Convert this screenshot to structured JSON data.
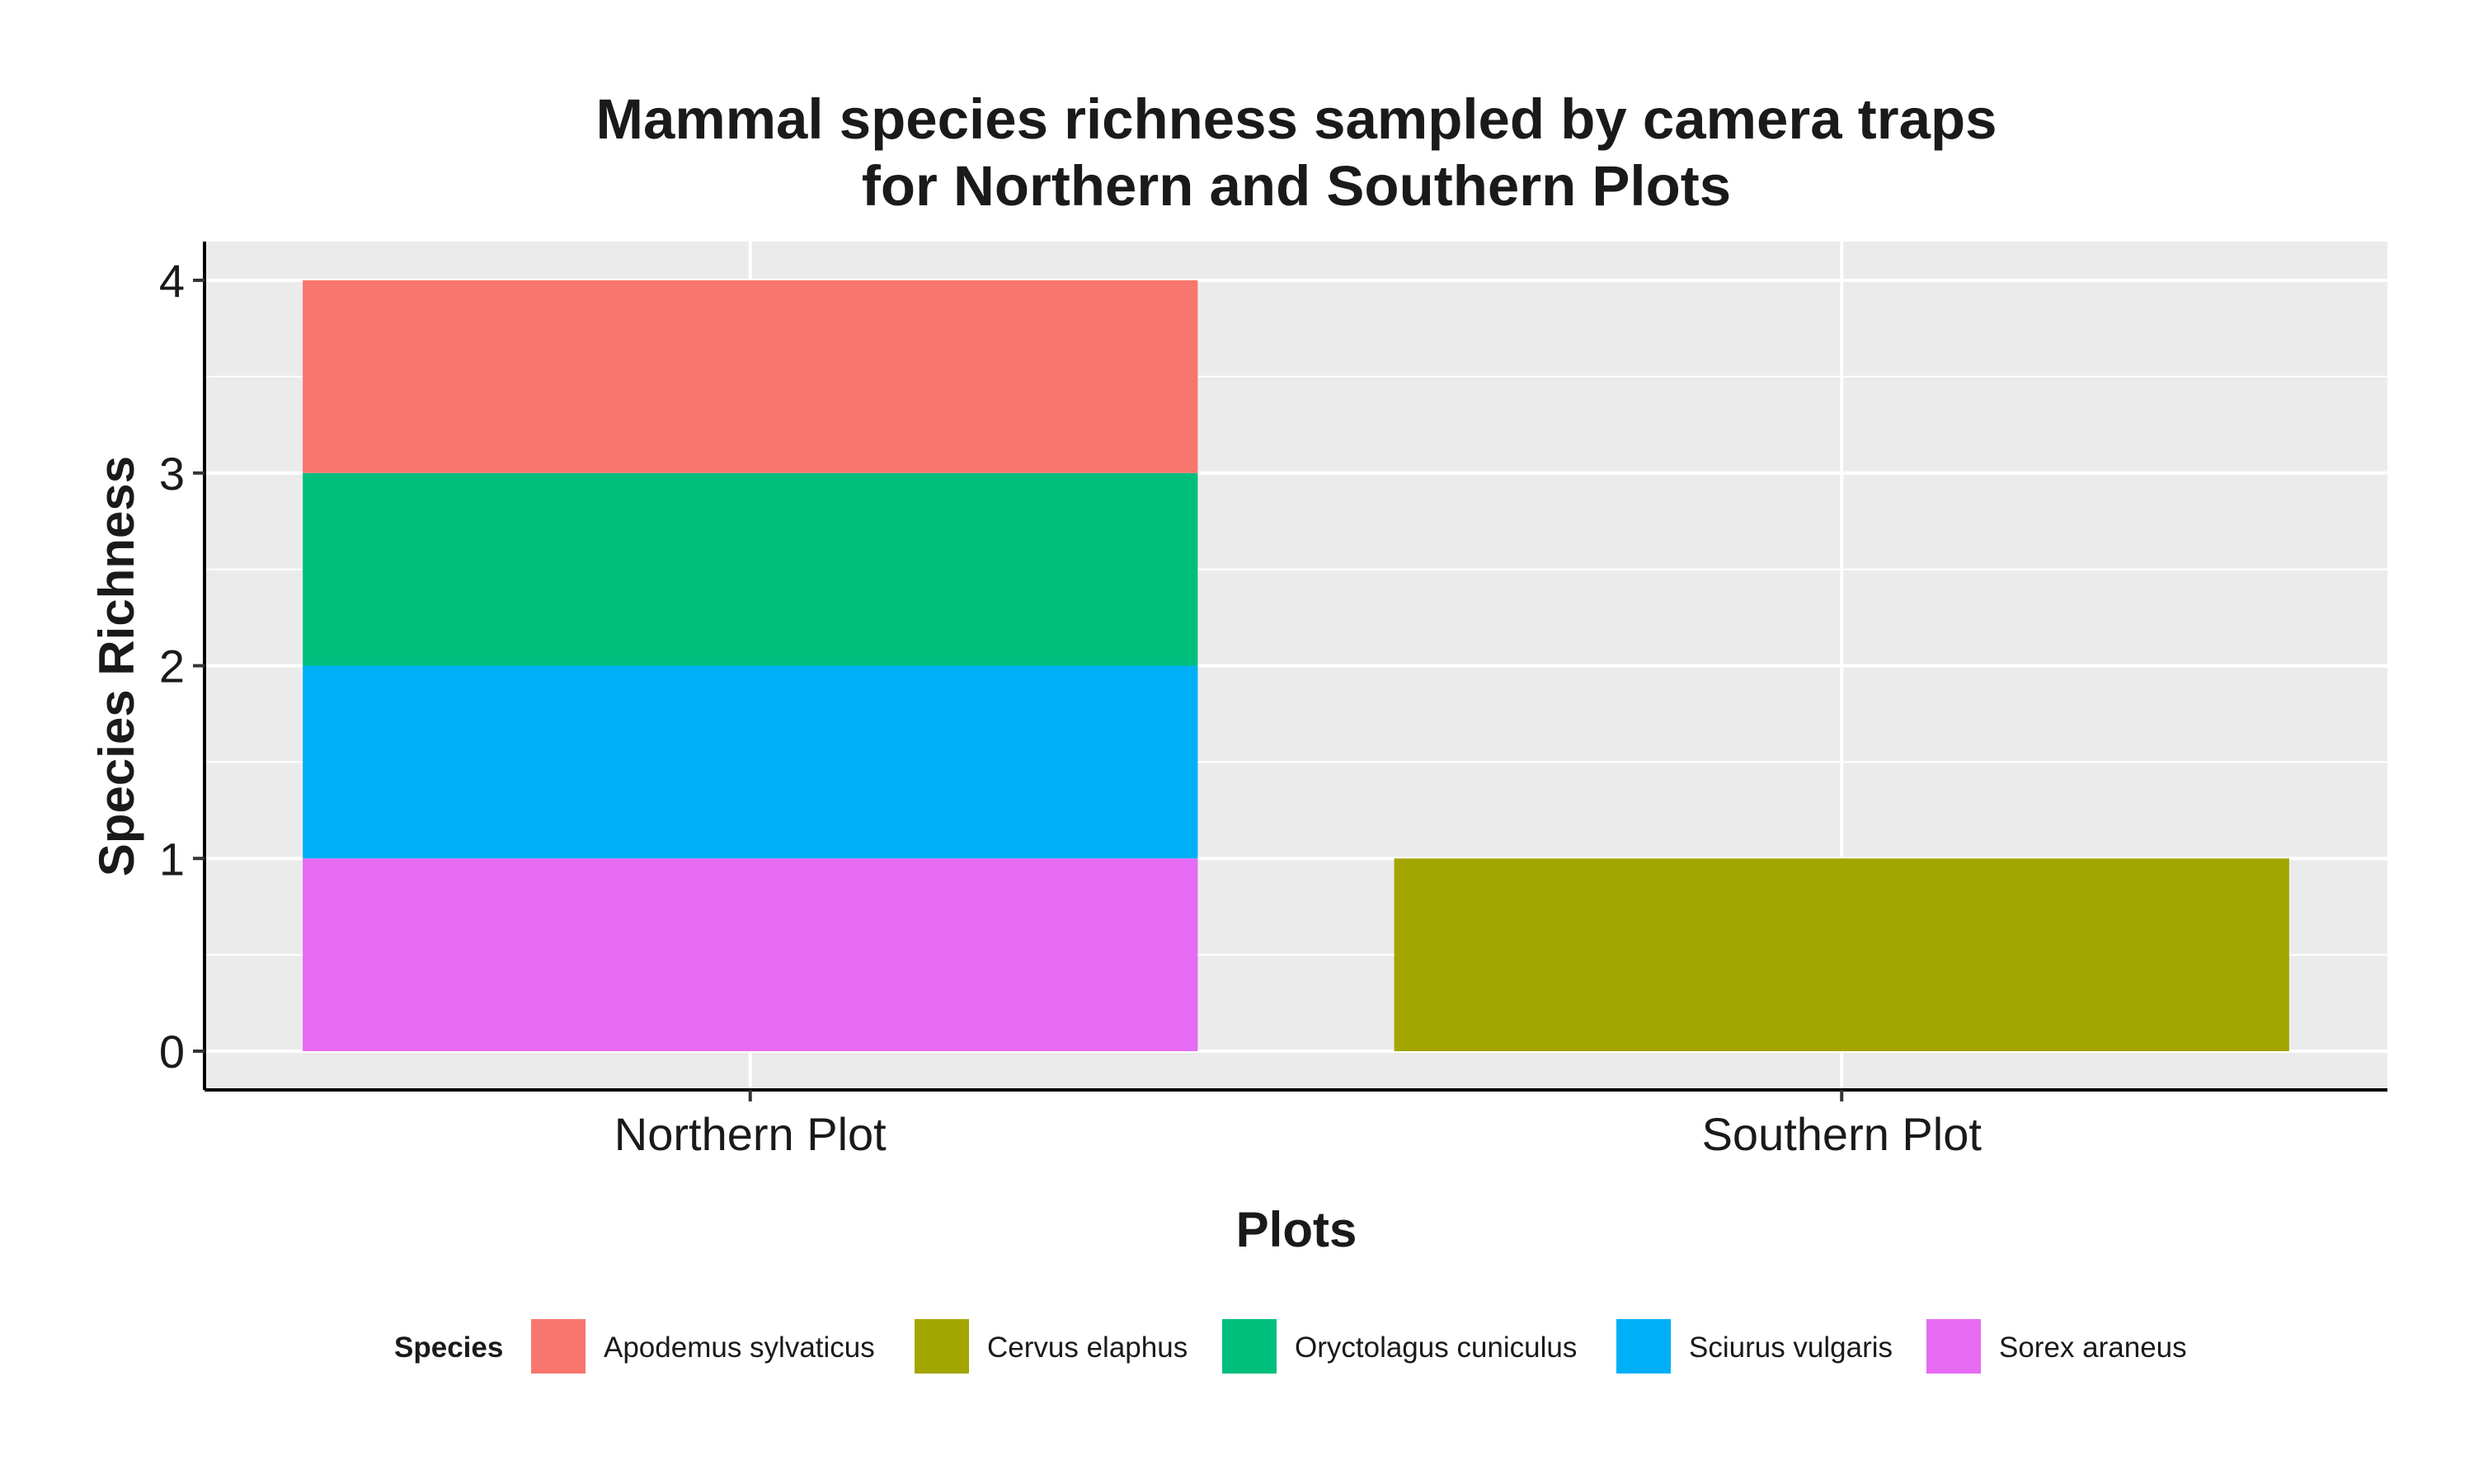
{
  "chart_data": {
    "type": "bar",
    "stacked": true,
    "title": [
      "Mammal species richness sampled by camera traps",
      "for Northern and Southern Plots"
    ],
    "xlabel": "Plots",
    "ylabel": "Species Richness",
    "categories": [
      "Northern Plot",
      "Southern Plot"
    ],
    "ylim": [
      0,
      4.2
    ],
    "yticks": [
      0,
      1,
      2,
      3,
      4
    ],
    "grid": true,
    "legend_title": "Species",
    "legend_position": "bottom",
    "series": [
      {
        "name": "Sorex araneus",
        "values": [
          1,
          0
        ],
        "color": "#E76BF3"
      },
      {
        "name": "Sciurus vulgaris",
        "values": [
          1,
          0
        ],
        "color": "#00B0F6"
      },
      {
        "name": "Oryctolagus cuniculus",
        "values": [
          1,
          0
        ],
        "color": "#00BF7D"
      },
      {
        "name": "Apodemus sylvaticus",
        "values": [
          1,
          0
        ],
        "color": "#F8766D"
      },
      {
        "name": "Cervus elaphus",
        "values": [
          0,
          1
        ],
        "color": "#A3A500"
      }
    ],
    "legend_order": [
      "Apodemus sylvaticus",
      "Cervus elaphus",
      "Oryctolagus cuniculus",
      "Sciurus vulgaris",
      "Sorex araneus"
    ]
  }
}
